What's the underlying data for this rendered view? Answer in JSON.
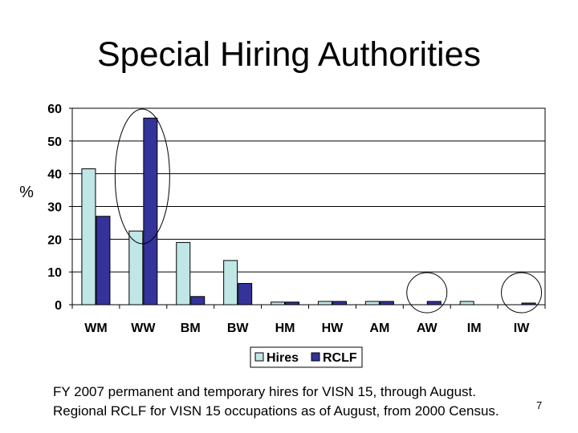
{
  "slide": {
    "title": "Special Hiring Authorities",
    "caption_lines": [
      "FY 2007 permanent and temporary hires for VISN 15, through August.",
      "Regional RCLF for VISN 15 occupations as of August, from 2000 Census."
    ],
    "page_number": "7"
  },
  "chart_data": {
    "type": "bar",
    "ylabel": "%",
    "xlabel": "",
    "ylim": [
      0,
      60
    ],
    "yticks": [
      0,
      10,
      20,
      30,
      40,
      50,
      60
    ],
    "grid": true,
    "legend": "bottom-center",
    "categories": [
      "WM",
      "WW",
      "BM",
      "BW",
      "HM",
      "HW",
      "AM",
      "AW",
      "IM",
      "IW"
    ],
    "series": [
      {
        "name": "Hires",
        "color": "#c0e6e6",
        "values": [
          41.5,
          22.5,
          19,
          13.5,
          0.8,
          1,
          1,
          0,
          1,
          0
        ]
      },
      {
        "name": "RCLF",
        "color": "#333399",
        "values": [
          27,
          57,
          2.5,
          6.5,
          0.8,
          1,
          1,
          1,
          0,
          0.5
        ]
      }
    ],
    "annotations": [
      {
        "type": "ellipse",
        "category": "WW"
      },
      {
        "type": "ellipse",
        "category": "AW"
      },
      {
        "type": "ellipse",
        "category": "IW"
      }
    ]
  }
}
